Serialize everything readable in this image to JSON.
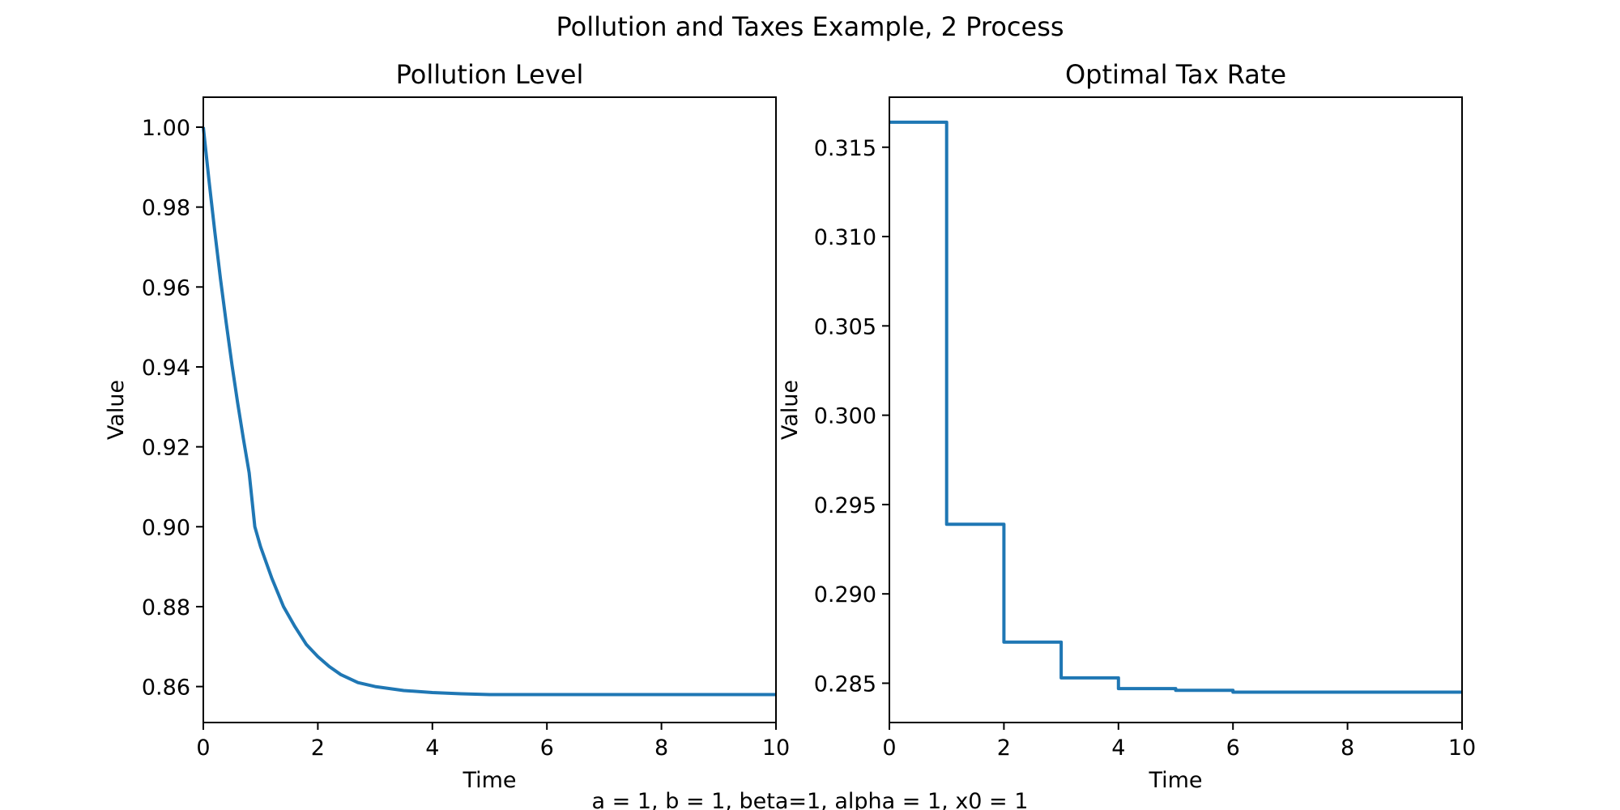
{
  "figure": {
    "suptitle": "Pollution and Taxes Example, 2 Process",
    "caption": "a = 1, b = 1, beta=1, alpha = 1, x0 = 1"
  },
  "chart_data": [
    {
      "type": "line",
      "title": "Pollution Level",
      "xlabel": "Time",
      "ylabel": "Value",
      "xlim": [
        0,
        10
      ],
      "ylim": [
        0.851,
        1.0075
      ],
      "xticks": [
        0,
        2,
        4,
        6,
        8,
        10
      ],
      "xtick_labels": [
        "0",
        "2",
        "4",
        "6",
        "8",
        "10"
      ],
      "yticks": [
        0.86,
        0.88,
        0.9,
        0.92,
        0.94,
        0.96,
        0.98,
        1.0
      ],
      "ytick_labels": [
        "0.86",
        "0.88",
        "0.90",
        "0.92",
        "0.94",
        "0.96",
        "0.98",
        "1.00"
      ],
      "grid": false,
      "color": "#1f77b4",
      "series": [
        {
          "x": [
            0,
            0.1,
            0.2,
            0.3,
            0.4,
            0.5,
            0.6,
            0.7,
            0.8,
            0.9,
            1.0,
            1.2,
            1.4,
            1.6,
            1.8,
            2.0,
            2.2,
            2.4,
            2.7,
            3.0,
            3.5,
            4.0,
            4.5,
            5.0,
            6.0,
            7.0,
            8.0,
            9.0,
            10.0
          ],
          "y": [
            1.0,
            0.9865,
            0.974,
            0.962,
            0.951,
            0.9405,
            0.931,
            0.922,
            0.9135,
            0.9,
            0.895,
            0.887,
            0.88,
            0.875,
            0.8705,
            0.8675,
            0.865,
            0.863,
            0.861,
            0.86,
            0.859,
            0.8585,
            0.8582,
            0.858,
            0.858,
            0.858,
            0.858,
            0.858,
            0.858
          ]
        }
      ]
    },
    {
      "type": "line",
      "title": "Optimal Tax Rate",
      "xlabel": "Time",
      "ylabel": "Value",
      "xlim": [
        0,
        10
      ],
      "ylim": [
        0.2828,
        0.3178
      ],
      "xticks": [
        0,
        2,
        4,
        6,
        8,
        10
      ],
      "xtick_labels": [
        "0",
        "2",
        "4",
        "6",
        "8",
        "10"
      ],
      "yticks": [
        0.285,
        0.29,
        0.295,
        0.3,
        0.305,
        0.31,
        0.315
      ],
      "ytick_labels": [
        "0.285",
        "0.290",
        "0.295",
        "0.300",
        "0.305",
        "0.310",
        "0.315"
      ],
      "grid": false,
      "color": "#1f77b4",
      "series": [
        {
          "x": [
            0,
            1.0,
            1.0,
            2.0,
            2.0,
            3.0,
            3.0,
            4.0,
            4.0,
            5.0,
            5.0,
            6.0,
            6.0,
            10.0
          ],
          "y": [
            0.3164,
            0.3164,
            0.2939,
            0.2939,
            0.2873,
            0.2873,
            0.2853,
            0.2853,
            0.2847,
            0.2847,
            0.2846,
            0.2846,
            0.2845,
            0.2845
          ]
        }
      ]
    }
  ]
}
